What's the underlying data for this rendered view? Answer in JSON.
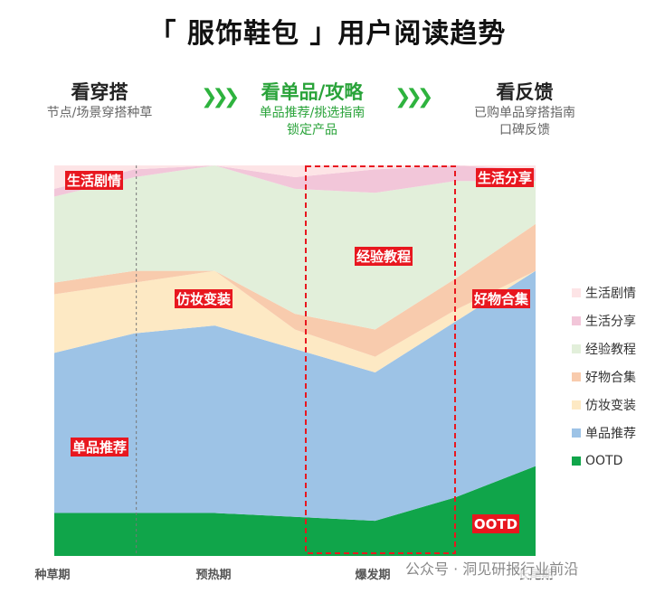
{
  "title": "「 服饰鞋包 」用户阅读趋势",
  "phases": [
    {
      "title": "看穿搭",
      "lines": [
        "节点/场景穿搭种草"
      ]
    },
    {
      "title": "看单品/攻略",
      "lines": [
        "单品推荐/挑选指南",
        "锁定产品"
      ]
    },
    {
      "title": "看反馈",
      "lines": [
        "已购单品穿搭指南",
        "口碑反馈"
      ]
    }
  ],
  "arrow_glyph": "❯❯❯",
  "watermark": "公众号 · 洞见研报行业前沿",
  "colors": {
    "arrow": "#2eb33e",
    "label_bg": "#e8171f",
    "highlight_box": "#e8171f"
  },
  "chart_data": {
    "type": "area",
    "stacked": true,
    "normalized": true,
    "x": [
      "种草期",
      "",
      "预热期",
      "",
      "爆发期",
      "",
      "长尾期"
    ],
    "series": [
      {
        "name": "OOTD",
        "color": "#10a54a",
        "values": [
          11,
          11,
          11,
          10,
          9,
          15,
          23
        ]
      },
      {
        "name": "单品推荐",
        "color": "#9dc3e6",
        "values": [
          41,
          46,
          48,
          43,
          38,
          45,
          50
        ]
      },
      {
        "name": "仿妆变装",
        "color": "#fde9c4",
        "values": [
          15,
          13,
          14,
          5,
          4,
          3,
          0
        ]
      },
      {
        "name": "好物合集",
        "color": "#f8cbad",
        "values": [
          3,
          3,
          0,
          4,
          7,
          8,
          12
        ]
      },
      {
        "name": "经验教程",
        "color": "#e2efda",
        "values": [
          22,
          24,
          27,
          32,
          35,
          25,
          11
        ]
      },
      {
        "name": "生活分享",
        "color": "#f2c6d9",
        "values": [
          2,
          2,
          0,
          3,
          6,
          4,
          3
        ]
      },
      {
        "name": "生活剧情",
        "color": "#fde4e6",
        "values": [
          6,
          1,
          0,
          3,
          1,
          0,
          1
        ]
      }
    ],
    "legend_position": "right",
    "annotations": [
      {
        "text": "生活剧情",
        "series": "生活剧情",
        "x_index": 0
      },
      {
        "text": "仿妆变装",
        "series": "仿妆变装",
        "x_index": 2
      },
      {
        "text": "经验教程",
        "series": "经验教程",
        "x_index": 4
      },
      {
        "text": "生活分享",
        "series": "生活分享",
        "x_index": 6
      },
      {
        "text": "好物合集",
        "series": "好物合集",
        "x_index": 6
      },
      {
        "text": "单品推荐",
        "series": "单品推荐",
        "x_index": 0
      },
      {
        "text": "OOTD",
        "series": "OOTD",
        "x_index": 6
      }
    ],
    "highlight_range": [
      "预热期",
      "爆发期"
    ]
  }
}
